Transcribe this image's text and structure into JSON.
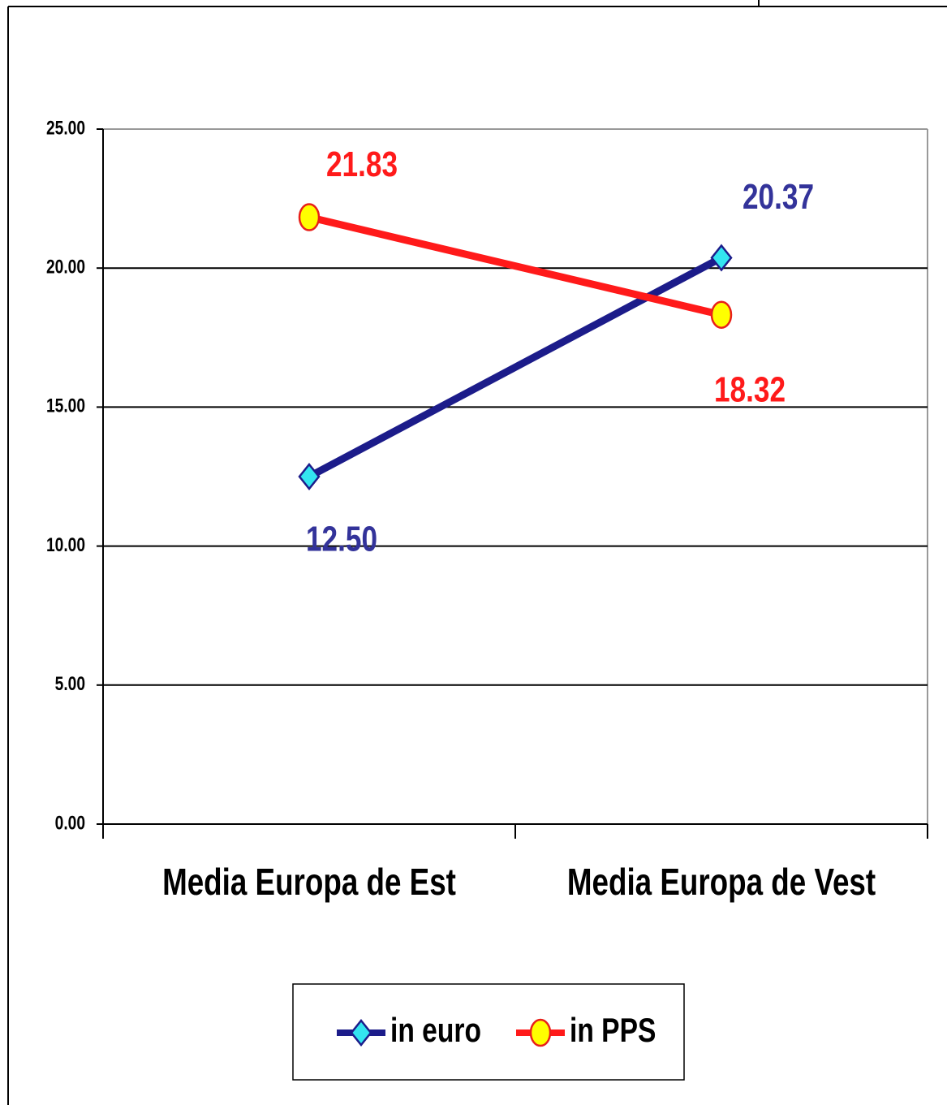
{
  "chart_data": {
    "type": "line",
    "categories": [
      "Media Europa de Est",
      "Media Europa de Vest"
    ],
    "series": [
      {
        "name": "in euro",
        "color": "#1c1c8a",
        "marker": "diamond",
        "marker_color": "#33e5f0",
        "values": [
          12.5,
          20.37
        ],
        "value_labels": [
          "12.50",
          "20.37"
        ]
      },
      {
        "name": "in PPS",
        "color": "#ff1a1a",
        "marker": "circle",
        "marker_color": "#ffff00",
        "values": [
          21.83,
          18.32
        ],
        "value_labels": [
          "21.83",
          "18.32"
        ]
      }
    ],
    "ylim": [
      0,
      25
    ],
    "yticks": [
      {
        "value": 0,
        "label": "0.00"
      },
      {
        "value": 5,
        "label": "5.00"
      },
      {
        "value": 10,
        "label": "10.00"
      },
      {
        "value": 15,
        "label": "15.00"
      },
      {
        "value": 20,
        "label": "20.00"
      },
      {
        "value": 25,
        "label": "25.00"
      }
    ],
    "grid": true,
    "legend": "bottom"
  }
}
